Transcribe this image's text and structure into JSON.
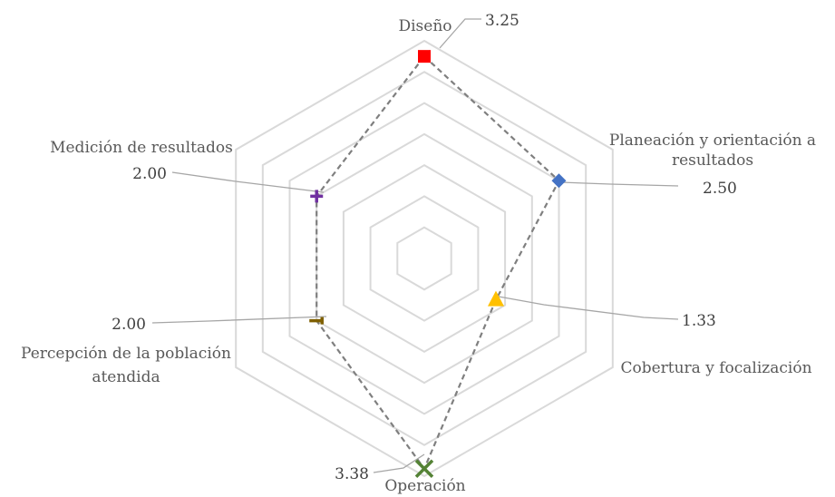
{
  "chart_data": {
    "type": "radar",
    "title": "",
    "axes": [
      {
        "name": "Diseño",
        "label_lines": [
          "Diseño"
        ],
        "value": 3.25,
        "value_label": "3.25",
        "marker": "square",
        "color": "#ff0000"
      },
      {
        "name": "Planeación y orientación a resultados",
        "label_lines": [
          "Planeación y orientación a",
          "resultados"
        ],
        "value": 2.5,
        "value_label": "2.50",
        "marker": "diamond",
        "color": "#4472c4"
      },
      {
        "name": "Cobertura y focalización",
        "label_lines": [
          "Cobertura y focalización"
        ],
        "value": 1.33,
        "value_label": "1.33",
        "marker": "triangle",
        "color": "#ffc000"
      },
      {
        "name": "Operación",
        "label_lines": [
          "Operación"
        ],
        "value": 3.38,
        "value_label": "3.38",
        "marker": "x",
        "color": "#548235"
      },
      {
        "name": "Percepción de la población atendida",
        "label_lines": [
          "Percepción de la población",
          "atendida"
        ],
        "value": 2.0,
        "value_label": "2.00",
        "marker": "dash",
        "color": "#7f6000"
      },
      {
        "name": "Medición de resultados",
        "label_lines": [
          "Medición de resultados"
        ],
        "value": 2.0,
        "value_label": "2.00",
        "marker": "plus",
        "color": "#7030a0"
      }
    ],
    "range": [
      0,
      3.5
    ],
    "grid_step": 0.5,
    "grid": true,
    "grid_color": "#d9d9d9",
    "series_line": "dashed",
    "series_line_color": "#7f7f7f",
    "leader_line_color": "#a6a6a6",
    "legend": "none"
  }
}
